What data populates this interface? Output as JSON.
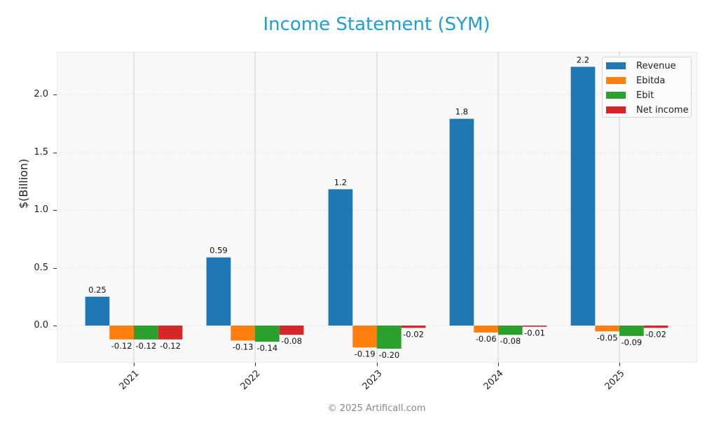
{
  "title": "Income Statement (SYM)",
  "footer": "© 2025 Artificall.com",
  "chart_data": {
    "type": "bar",
    "title": "Income Statement (SYM)",
    "xlabel": "",
    "ylabel": "$(Billion)",
    "ylim": [
      -0.32,
      2.35
    ],
    "yticks": [
      0.0,
      0.5,
      1.0,
      1.5,
      2.0
    ],
    "ytick_labels": [
      "0.0",
      "0.5",
      "1.0",
      "1.5",
      "2.0"
    ],
    "grid": true,
    "legend_position": "upper right",
    "categories": [
      "2021",
      "2022",
      "2023",
      "2024",
      "2025"
    ],
    "series": [
      {
        "name": "Revenue",
        "color": "#1f77b4",
        "values": [
          0.25,
          0.59,
          1.18,
          1.79,
          2.24
        ],
        "labels": [
          "0.25",
          "0.59",
          "1.2",
          "1.8",
          "2.2"
        ]
      },
      {
        "name": "Ebitda",
        "color": "#ff7f0e",
        "values": [
          -0.12,
          -0.13,
          -0.19,
          -0.06,
          -0.05
        ],
        "labels": [
          "-0.12",
          "-0.13",
          "-0.19",
          "-0.06",
          "-0.05"
        ]
      },
      {
        "name": "Ebit",
        "color": "#2ca02c",
        "values": [
          -0.12,
          -0.14,
          -0.2,
          -0.08,
          -0.09
        ],
        "labels": [
          "-0.12",
          "-0.14",
          "-0.20",
          "-0.08",
          "-0.09"
        ]
      },
      {
        "name": "Net income",
        "color": "#d62728",
        "values": [
          -0.12,
          -0.08,
          -0.02,
          -0.01,
          -0.02
        ],
        "labels": [
          "-0.12",
          "-0.08",
          "-0.02",
          "-0.01",
          "-0.02"
        ]
      }
    ]
  }
}
